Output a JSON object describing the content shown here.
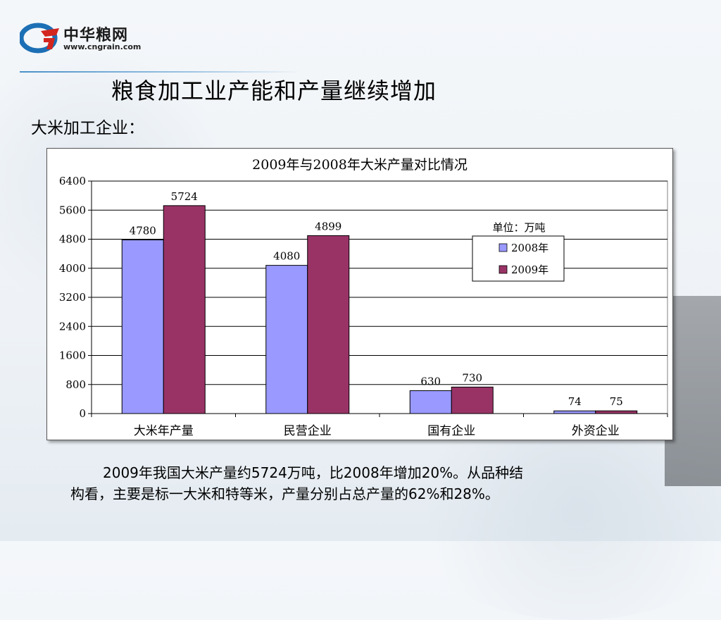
{
  "logo": {
    "name": "中华粮网",
    "url": "www.cngrain.com"
  },
  "page": {
    "title": "粮食加工业产能和产量继续增加",
    "subtitle": "大米加工企业：",
    "caption_line1": "2009年我国大米产量约5724万吨，比2008年增加20%。从品种结",
    "caption_line2": "构看，主要是标一大米和特等米，产量分别占总产量的62%和28%。"
  },
  "colors": {
    "series_2008": "#9999ff",
    "series_2009": "#993366",
    "gridline": "#000000"
  },
  "chart_data": {
    "type": "bar",
    "title": "2009年与2008年大米产量对比情况",
    "unit_label": "单位：万吨",
    "categories": [
      "大米年产量",
      "民营企业",
      "国有企业",
      "外资企业"
    ],
    "series": [
      {
        "name": "2008年",
        "values": [
          4780,
          4080,
          630,
          74
        ]
      },
      {
        "name": "2009年",
        "values": [
          5724,
          4899,
          730,
          75
        ]
      }
    ],
    "ylim": [
      0,
      6400
    ],
    "yticks": [
      0,
      800,
      1600,
      2400,
      3200,
      4000,
      4800,
      5600,
      6400
    ],
    "grid": true,
    "legend_position": "right"
  }
}
